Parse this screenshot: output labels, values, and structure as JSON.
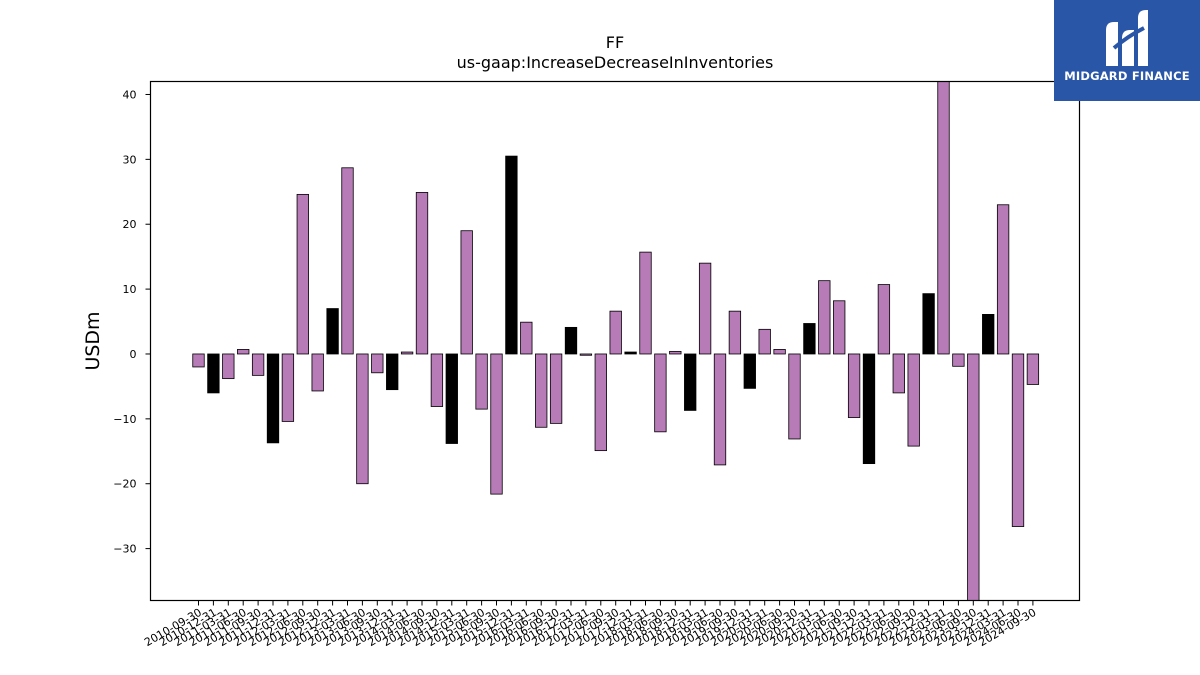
{
  "chart_data": {
    "type": "bar",
    "title": "FF",
    "subtitle": "us-gaap:IncreaseDecreaseInInventories",
    "xlabel": "",
    "ylabel": "USDm",
    "ylim": [
      -38,
      42
    ],
    "yticks": [
      -30,
      -20,
      -10,
      0,
      10,
      20,
      30,
      40
    ],
    "grid": false,
    "categories": [
      "2010-09-30",
      "2010-12-31",
      "2011-03-31",
      "2011-06-30",
      "2011-09-30",
      "2011-12-31",
      "2012-03-31",
      "2012-06-30",
      "2012-09-30",
      "2012-12-31",
      "2013-03-31",
      "2013-06-30",
      "2013-09-30",
      "2013-12-31",
      "2014-03-31",
      "2014-06-30",
      "2014-09-30",
      "2014-12-31",
      "2015-03-31",
      "2015-06-30",
      "2015-09-30",
      "2015-12-31",
      "2016-03-31",
      "2016-06-30",
      "2016-09-30",
      "2016-12-31",
      "2017-03-31",
      "2017-06-30",
      "2017-09-30",
      "2017-12-31",
      "2018-03-31",
      "2018-06-30",
      "2018-09-30",
      "2018-12-31",
      "2019-03-31",
      "2019-06-30",
      "2019-09-30",
      "2019-12-31",
      "2020-03-31",
      "2020-06-30",
      "2020-09-30",
      "2020-12-31",
      "2021-03-31",
      "2021-06-30",
      "2021-09-30",
      "2021-12-31",
      "2022-03-31",
      "2022-06-30",
      "2022-09-30",
      "2022-12-31",
      "2023-03-31",
      "2023-06-30",
      "2023-09-30",
      "2023-12-31",
      "2024-03-31",
      "2024-06-30",
      "2024-09-30"
    ],
    "values": [
      -2.0,
      -6.0,
      -3.8,
      0.7,
      -3.3,
      -13.7,
      -10.4,
      24.6,
      -5.7,
      7.0,
      28.7,
      -20.0,
      -2.9,
      -5.5,
      0.3,
      24.9,
      -8.1,
      -13.8,
      19.0,
      -8.5,
      -21.6,
      30.5,
      4.9,
      -11.3,
      -10.7,
      4.1,
      -0.2,
      -14.9,
      6.6,
      0.3,
      15.7,
      -12.0,
      0.4,
      -8.7,
      14.0,
      -17.1,
      6.6,
      -5.3,
      3.8,
      0.7,
      -13.1,
      4.7,
      11.3,
      8.2,
      -9.8,
      -16.9,
      10.7,
      -6.0,
      -14.2,
      9.3,
      42.0,
      -1.9,
      -38.0,
      6.1,
      23.0,
      -26.6,
      -4.7
    ],
    "bar_colors": [
      "#b77bb8",
      "#000000",
      "#b77bb8",
      "#b77bb8",
      "#b77bb8",
      "#000000",
      "#b77bb8",
      "#b77bb8",
      "#b77bb8",
      "#000000",
      "#b77bb8",
      "#b77bb8",
      "#b77bb8",
      "#000000",
      "#b77bb8",
      "#b77bb8",
      "#b77bb8",
      "#000000",
      "#b77bb8",
      "#b77bb8",
      "#b77bb8",
      "#000000",
      "#b77bb8",
      "#b77bb8",
      "#b77bb8",
      "#000000",
      "#b77bb8",
      "#b77bb8",
      "#b77bb8",
      "#000000",
      "#b77bb8",
      "#b77bb8",
      "#b77bb8",
      "#000000",
      "#b77bb8",
      "#b77bb8",
      "#b77bb8",
      "#000000",
      "#b77bb8",
      "#b77bb8",
      "#b77bb8",
      "#000000",
      "#b77bb8",
      "#b77bb8",
      "#b77bb8",
      "#000000",
      "#b77bb8",
      "#b77bb8",
      "#b77bb8",
      "#000000",
      "#b77bb8",
      "#b77bb8",
      "#b77bb8",
      "#000000",
      "#b77bb8",
      "#b77bb8",
      "#b77bb8"
    ]
  },
  "logo": {
    "text": "MIDGARD FINANCE",
    "background": "#2a56a8"
  }
}
